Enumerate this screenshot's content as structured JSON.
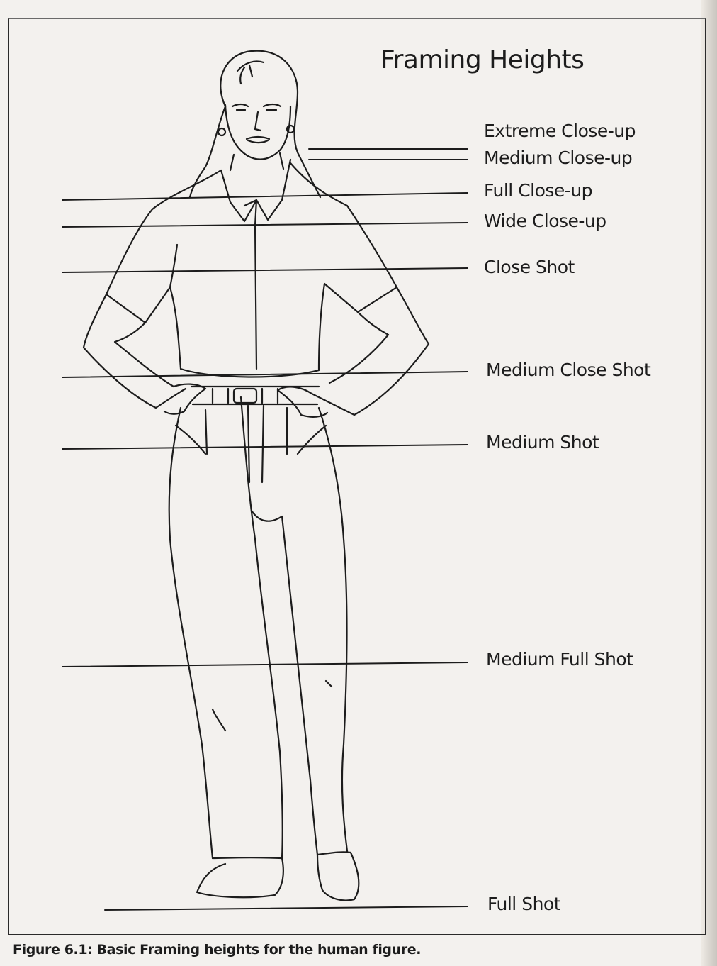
{
  "title": "Framing Heights",
  "labels": {
    "extreme_close_up": "Extreme Close-up",
    "medium_close_up": "Medium Close-up",
    "full_close_up": "Full Close-up",
    "wide_close_up": "Wide Close-up",
    "close_shot": "Close Shot",
    "medium_close_shot": "Medium Close Shot",
    "medium_shot": "Medium Shot",
    "medium_full_shot": "Medium Full Shot",
    "full_shot": "Full Shot"
  },
  "caption": "Figure 6.1: Basic Framing heights for the human figure.",
  "colors": {
    "ink": "#1c1c1c",
    "paper": "#f3f1ee"
  }
}
